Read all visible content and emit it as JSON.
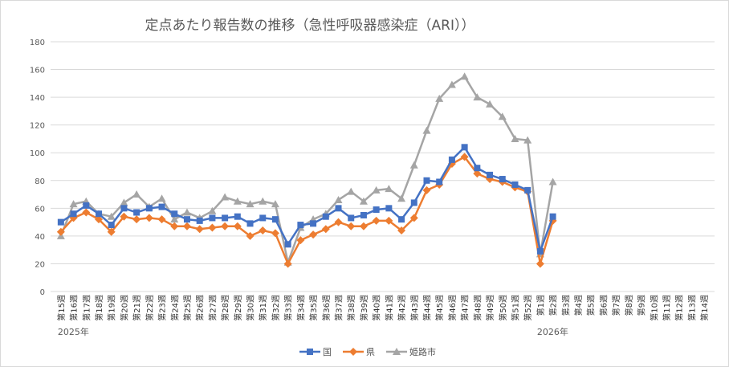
{
  "chart_data": {
    "type": "line",
    "title": "定点あたり報告数の推移（急性呼吸器感染症（ARI））",
    "xlabel": "",
    "ylabel": "",
    "ylim": [
      0,
      180
    ],
    "yticks": [
      0,
      20,
      40,
      60,
      80,
      100,
      120,
      140,
      160,
      180
    ],
    "grid": true,
    "legend_position": "bottom",
    "categories": [
      "第15週",
      "第16週",
      "第17週",
      "第18週",
      "第19週",
      "第20週",
      "第21週",
      "第22週",
      "第23週",
      "第24週",
      "第25週",
      "第26週",
      "第27週",
      "第28週",
      "第29週",
      "第30週",
      "第31週",
      "第32週",
      "第33週",
      "第34週",
      "第35週",
      "第36週",
      "第37週",
      "第38週",
      "第39週",
      "第40週",
      "第41週",
      "第42週",
      "第43週",
      "第44週",
      "第45週",
      "第46週",
      "第47週",
      "第48週",
      "第49週",
      "第50週",
      "第51週",
      "第52週",
      "第1週",
      "第2週",
      "第3週",
      "第4週",
      "第5週",
      "第6週",
      "第7週",
      "第8週",
      "第9週",
      "第10週",
      "第11週",
      "第12週",
      "第13週",
      "第14週"
    ],
    "category_groups": [
      {
        "label": "2025年",
        "start_index": 0
      },
      {
        "label": "2026年",
        "start_index": 38
      }
    ],
    "series": [
      {
        "name": "国",
        "color": "#4472C4",
        "marker": "square",
        "values": [
          50,
          56,
          62,
          56,
          48,
          60,
          57,
          60,
          61,
          56,
          52,
          51,
          53,
          53,
          54,
          49,
          53,
          52,
          34,
          48,
          49,
          54,
          60,
          53,
          55,
          59,
          60,
          52,
          64,
          80,
          79,
          95,
          104,
          89,
          84,
          81,
          77,
          73,
          29,
          54,
          null,
          null,
          null,
          null,
          null,
          null,
          null,
          null,
          null,
          null,
          null,
          null
        ]
      },
      {
        "name": "県",
        "color": "#ED7D31",
        "marker": "diamond",
        "values": [
          43,
          53,
          57,
          52,
          43,
          54,
          52,
          53,
          52,
          47,
          47,
          45,
          46,
          47,
          47,
          40,
          44,
          42,
          20,
          37,
          41,
          45,
          50,
          47,
          47,
          51,
          51,
          44,
          53,
          73,
          77,
          92,
          97,
          85,
          81,
          79,
          75,
          72,
          20,
          51,
          null,
          null,
          null,
          null,
          null,
          null,
          null,
          null,
          null,
          null,
          null,
          null
        ]
      },
      {
        "name": "姫路市",
        "color": "#A5A5A5",
        "marker": "triangle",
        "values": [
          40,
          63,
          65,
          56,
          54,
          64,
          70,
          61,
          67,
          52,
          57,
          53,
          58,
          68,
          65,
          63,
          65,
          63,
          21,
          46,
          52,
          56,
          66,
          72,
          65,
          73,
          74,
          67,
          91,
          116,
          139,
          149,
          155,
          140,
          135,
          126,
          110,
          109,
          27,
          79,
          null,
          null,
          null,
          null,
          null,
          null,
          null,
          null,
          null,
          null,
          null,
          null
        ]
      }
    ]
  }
}
